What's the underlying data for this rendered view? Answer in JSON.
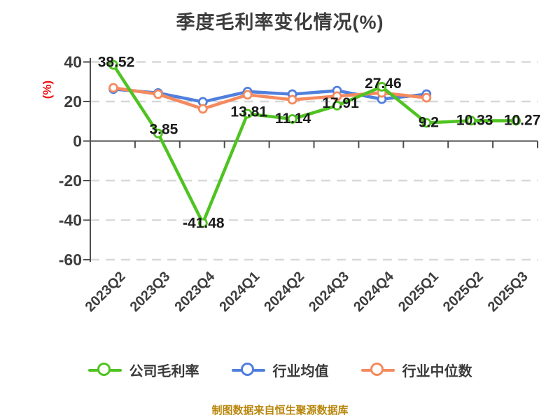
{
  "title": "季度毛利率变化情况(%)",
  "footer": "制图数据来自恒生聚源数据库",
  "colors": {
    "company": "#4fc321",
    "industry_mean": "#507fdd",
    "industry_median": "#f58a5e",
    "title_text": "#3d3d3d",
    "tick_text": "#3d3d3d",
    "value_label_text": "#1a1a1a",
    "grid": "#d8d8d8",
    "axis": "#4d4d4d",
    "y_axis_label_red": "#ee1111",
    "footer_gold": "#b8860b",
    "background": "#ffffff"
  },
  "chart_data": {
    "type": "line",
    "title": "季度毛利率变化情况(%)",
    "xlabel": "",
    "ylabel": "(%)",
    "ylim": [
      -61,
      42
    ],
    "yticks": [
      40,
      20,
      0,
      -20,
      -40,
      -60
    ],
    "grid": "horizontal-dashed",
    "legend_position": "bottom",
    "categories": [
      "2023Q2",
      "2023Q3",
      "2023Q4",
      "2024Q1",
      "2024Q2",
      "2024Q3",
      "2024Q4",
      "2025Q1",
      "2025Q2",
      "2025Q3"
    ],
    "series": [
      {
        "name": "公司毛利率",
        "color": "#4fc321",
        "values": [
          38.52,
          3.85,
          -41.48,
          13.81,
          11.14,
          17.91,
          27.46,
          9.2,
          10.33,
          10.27
        ],
        "labels": [
          "38.52",
          "3.85",
          "-41.48",
          "13.81",
          "11.14",
          "17.91",
          "27.46",
          "9.2",
          "10.33",
          "10.27"
        ],
        "show_point_labels": true
      },
      {
        "name": "行业均值",
        "color": "#507fdd",
        "values": [
          26.3,
          24.3,
          19.8,
          25.0,
          23.7,
          25.5,
          21.2,
          23.7
        ],
        "show_point_labels": false
      },
      {
        "name": "行业中位数",
        "color": "#f58a5e",
        "values": [
          26.9,
          23.7,
          16.3,
          23.4,
          20.9,
          22.7,
          24.4,
          21.9
        ],
        "show_point_labels": false
      }
    ]
  }
}
